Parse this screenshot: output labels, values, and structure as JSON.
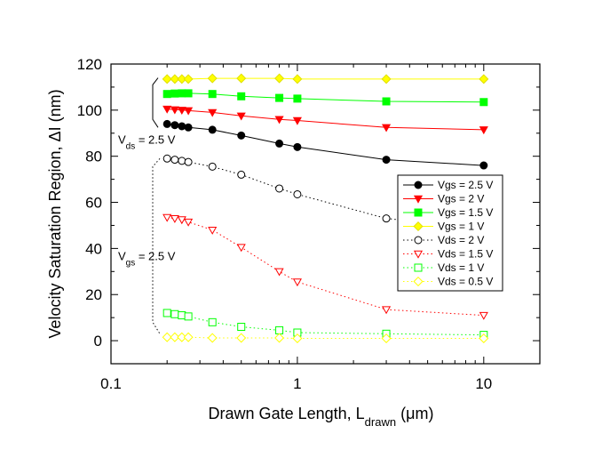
{
  "chart_data": {
    "type": "line",
    "xlabel": "Drawn Gate Length, L_drawn (μm)",
    "xlabel_parts": {
      "main": "Drawn Gate Length, L",
      "sub": "drawn",
      "tail": " (",
      "mu": "μ",
      "unit": "m)"
    },
    "ylabel": "Velocity Saturation Region, ΔI (nm)",
    "x_scale": "log",
    "xlim": [
      0.1,
      20
    ],
    "ylim": [
      -10,
      120
    ],
    "x_ticks": [
      0.1,
      1,
      10
    ],
    "x_tick_labels": [
      "0.1",
      "1",
      "10"
    ],
    "y_ticks": [
      0,
      20,
      40,
      60,
      80,
      100,
      120
    ],
    "y_tick_labels": [
      "0",
      "20",
      "40",
      "60",
      "80",
      "100",
      "120"
    ],
    "grid": false,
    "legend_placement": "right, mid",
    "annotations": [
      {
        "id": "vds",
        "label": "V",
        "sub": "ds",
        "rest": " = 2.5 V"
      },
      {
        "id": "vgs",
        "label": "V",
        "sub": "gs",
        "rest": " = 2.5 V"
      }
    ],
    "series": [
      {
        "name": "Vgs = 2.5 V",
        "marker": "circle",
        "filled": true,
        "color": "#000000",
        "line": "solid",
        "x": [
          0.2,
          0.22,
          0.24,
          0.26,
          0.35,
          0.5,
          0.8,
          1.0,
          3.0,
          10.0
        ],
        "y": [
          94,
          93.5,
          93,
          92.5,
          91.5,
          89,
          85.5,
          84,
          78.5,
          76
        ]
      },
      {
        "name": "Vgs = 2 V",
        "marker": "triangle-down",
        "filled": true,
        "color": "#ff0000",
        "line": "solid",
        "x": [
          0.2,
          0.22,
          0.24,
          0.26,
          0.35,
          0.5,
          0.8,
          1.0,
          3.0,
          10.0
        ],
        "y": [
          100.5,
          100.2,
          100,
          99.8,
          99,
          97.5,
          96,
          95.5,
          92.5,
          91.5
        ]
      },
      {
        "name": "Vgs = 1.5 V",
        "marker": "square",
        "filled": true,
        "color": "#00ff00",
        "line": "solid",
        "x": [
          0.2,
          0.22,
          0.24,
          0.26,
          0.35,
          0.5,
          0.8,
          1.0,
          3.0,
          10.0
        ],
        "y": [
          107,
          107.2,
          107.3,
          107.3,
          107,
          106,
          105.3,
          105,
          103.8,
          103.5
        ]
      },
      {
        "name": "Vgs = 1 V",
        "marker": "diamond",
        "filled": true,
        "color": "#ffff00",
        "line": "solid",
        "x": [
          0.2,
          0.22,
          0.24,
          0.26,
          0.35,
          0.5,
          0.8,
          1.0,
          3.0,
          10.0
        ],
        "y": [
          113.5,
          113.5,
          113.5,
          113.5,
          113.8,
          113.8,
          113.8,
          113.5,
          113.5,
          113.5
        ]
      },
      {
        "name": "Vds = 2 V",
        "marker": "circle",
        "filled": false,
        "color": "#000000",
        "line": "dotted",
        "x": [
          0.2,
          0.22,
          0.24,
          0.26,
          0.35,
          0.5,
          0.8,
          1.0,
          3.0,
          10.0
        ],
        "y": [
          79,
          78.5,
          78,
          77.5,
          75.5,
          72,
          66,
          63.5,
          53,
          49
        ]
      },
      {
        "name": "Vds = 1.5 V",
        "marker": "triangle-down",
        "filled": false,
        "color": "#ff0000",
        "line": "dotted",
        "x": [
          0.2,
          0.22,
          0.24,
          0.26,
          0.35,
          0.5,
          0.8,
          1.0,
          3.0,
          10.0
        ],
        "y": [
          53.5,
          53,
          52.5,
          51.5,
          48,
          40.5,
          30,
          25.5,
          13.5,
          11
        ]
      },
      {
        "name": "Vds = 1 V",
        "marker": "square",
        "filled": false,
        "color": "#00ff00",
        "line": "dotted",
        "x": [
          0.2,
          0.22,
          0.24,
          0.26,
          0.35,
          0.5,
          0.8,
          1.0,
          3.0,
          10.0
        ],
        "y": [
          12,
          11.5,
          11,
          10.5,
          8,
          6,
          4.5,
          3.5,
          3,
          2.5
        ]
      },
      {
        "name": "Vds = 0.5 V",
        "marker": "diamond",
        "filled": false,
        "color": "#ffff00",
        "line": "dotted",
        "x": [
          0.2,
          0.22,
          0.24,
          0.26,
          0.35,
          0.5,
          0.8,
          1.0,
          3.0,
          10.0
        ],
        "y": [
          1.5,
          1.5,
          1.5,
          1.5,
          1.2,
          1.2,
          1.2,
          1,
          1,
          1
        ]
      }
    ]
  }
}
